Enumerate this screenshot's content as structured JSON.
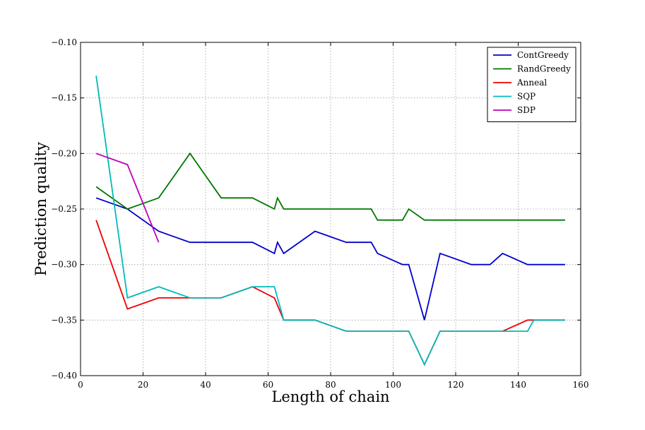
{
  "chart_data": {
    "type": "line",
    "xlabel": "Length of chain",
    "ylabel": "Prediction quality",
    "xlim": [
      0,
      160
    ],
    "ylim": [
      -0.4,
      -0.1
    ],
    "xticks": [
      0,
      20,
      40,
      60,
      80,
      100,
      120,
      140,
      160
    ],
    "yticks": [
      -0.4,
      -0.35,
      -0.3,
      -0.25,
      -0.2,
      -0.15,
      -0.1
    ],
    "xtick_labels": [
      "0",
      "20",
      "40",
      "60",
      "80",
      "100",
      "120",
      "140",
      "160"
    ],
    "ytick_labels": [
      "−0.40",
      "−0.35",
      "−0.30",
      "−0.25",
      "−0.20",
      "−0.15",
      "−0.10"
    ],
    "grid": true,
    "legend_position": "top-right",
    "series": [
      {
        "name": "ContGreedy",
        "color": "#0000cc",
        "x": [
          5,
          15,
          25,
          35,
          45,
          55,
          62,
          63,
          65,
          75,
          85,
          93,
          95,
          103,
          105,
          110,
          115,
          125,
          131,
          135,
          143,
          155
        ],
        "y": [
          -0.24,
          -0.25,
          -0.27,
          -0.28,
          -0.28,
          -0.28,
          -0.29,
          -0.28,
          -0.29,
          -0.27,
          -0.28,
          -0.28,
          -0.29,
          -0.3,
          -0.3,
          -0.35,
          -0.29,
          -0.3,
          -0.3,
          -0.29,
          -0.3,
          -0.3
        ]
      },
      {
        "name": "RandGreedy",
        "color": "#007700",
        "x": [
          5,
          15,
          25,
          35,
          45,
          55,
          62,
          63,
          65,
          75,
          85,
          93,
          95,
          103,
          105,
          110,
          115,
          125,
          135,
          145,
          155
        ],
        "y": [
          -0.23,
          -0.25,
          -0.24,
          -0.2,
          -0.24,
          -0.24,
          -0.25,
          -0.24,
          -0.25,
          -0.25,
          -0.25,
          -0.25,
          -0.26,
          -0.26,
          -0.25,
          -0.26,
          -0.26,
          -0.26,
          -0.26,
          -0.26,
          -0.26
        ]
      },
      {
        "name": "Anneal",
        "color": "#ee0000",
        "x": [
          5,
          15,
          25,
          35,
          45,
          55,
          62,
          65,
          75,
          85,
          95,
          105,
          110,
          115,
          125,
          135,
          143,
          155
        ],
        "y": [
          -0.26,
          -0.34,
          -0.33,
          -0.33,
          -0.33,
          -0.32,
          -0.33,
          -0.35,
          -0.35,
          -0.36,
          -0.36,
          -0.36,
          -0.39,
          -0.36,
          -0.36,
          -0.36,
          -0.35,
          -0.35
        ]
      },
      {
        "name": "SQP",
        "color": "#00bbbb",
        "x": [
          5,
          15,
          25,
          35,
          45,
          55,
          62,
          65,
          75,
          85,
          95,
          105,
          110,
          115,
          125,
          135,
          143,
          145,
          155
        ],
        "y": [
          -0.13,
          -0.33,
          -0.32,
          -0.33,
          -0.33,
          -0.32,
          -0.32,
          -0.35,
          -0.35,
          -0.36,
          -0.36,
          -0.36,
          -0.39,
          -0.36,
          -0.36,
          -0.36,
          -0.36,
          -0.35,
          -0.35
        ]
      },
      {
        "name": "SDP",
        "color": "#bb00bb",
        "x": [
          5,
          15,
          25
        ],
        "y": [
          -0.2,
          -0.21,
          -0.28
        ]
      }
    ]
  }
}
